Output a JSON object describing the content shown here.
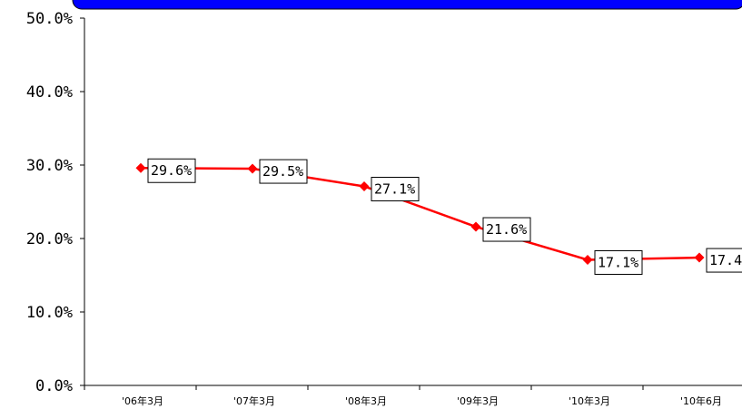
{
  "colors": {
    "line": "#ff0000",
    "header_bar": "#0000ff",
    "axis": "#000000",
    "label_box_fill": "#ffffff",
    "label_box_stroke": "#000000"
  },
  "chart_data": {
    "type": "line",
    "categories": [
      "'06年3月",
      "'07年3月",
      "'08年3月",
      "'09年3月",
      "'10年3月",
      "'10年6月"
    ],
    "series": [
      {
        "values": [
          29.6,
          29.5,
          27.1,
          21.6,
          17.1,
          17.4
        ],
        "labels": [
          "29.6%",
          "29.5%",
          "27.1%",
          "21.6%",
          "17.1%",
          "17.4"
        ],
        "marker": "diamond"
      }
    ],
    "y_ticks": [
      "0.0%",
      "10.0%",
      "20.0%",
      "30.0%",
      "40.0%",
      "50.0%"
    ],
    "ylim": [
      0,
      50
    ],
    "grid": false,
    "legend": "none"
  }
}
